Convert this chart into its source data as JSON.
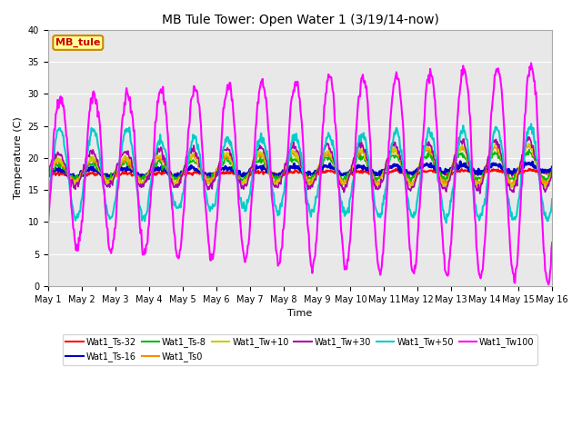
{
  "title": "MB Tule Tower: Open Water 1 (3/19/14-now)",
  "xlabel": "Time",
  "ylabel": "Temperature (C)",
  "ylim": [
    0,
    40
  ],
  "yticks": [
    0,
    5,
    10,
    15,
    20,
    25,
    30,
    35,
    40
  ],
  "xlim": [
    0,
    15
  ],
  "xtick_labels": [
    "May 1",
    "May 2",
    "May 3",
    "May 4",
    "May 5",
    "May 6",
    "May 7",
    "May 8",
    "May 9",
    "May 10",
    "May 11",
    "May 12",
    "May 13",
    "May 14",
    "May 15",
    "May 16"
  ],
  "series_colors": {
    "Wat1_Ts-32": "#ff0000",
    "Wat1_Ts-16": "#0000cc",
    "Wat1_Ts-8": "#00bb00",
    "Wat1_Ts0": "#ff8800",
    "Wat1_Tw+10": "#cccc00",
    "Wat1_Tw+30": "#aa00aa",
    "Wat1_Tw+50": "#00cccc",
    "Wat1_Tw100": "#ff00ff"
  },
  "series_lw": {
    "Wat1_Ts-32": 1.5,
    "Wat1_Ts-16": 2.0,
    "Wat1_Ts-8": 1.2,
    "Wat1_Ts0": 1.2,
    "Wat1_Tw+10": 1.2,
    "Wat1_Tw+30": 1.2,
    "Wat1_Tw+50": 1.5,
    "Wat1_Tw100": 1.5
  },
  "legend_cols": 6,
  "legend_row1": [
    "Wat1_Ts-32",
    "Wat1_Ts-16",
    "Wat1_Ts-8",
    "Wat1_Ts0",
    "Wat1_Tw+10",
    "Wat1_Tw+30"
  ],
  "legend_row2": [
    "Wat1_Tw+50",
    "Wat1_Tw100"
  ],
  "bg_color": "#e8e8e8",
  "annotation_text": "MB_tule",
  "annotation_color": "#cc0000",
  "annotation_bg": "#ffff99",
  "annotation_border": "#cc8800",
  "fig_width": 6.4,
  "fig_height": 4.8,
  "dpi": 100
}
